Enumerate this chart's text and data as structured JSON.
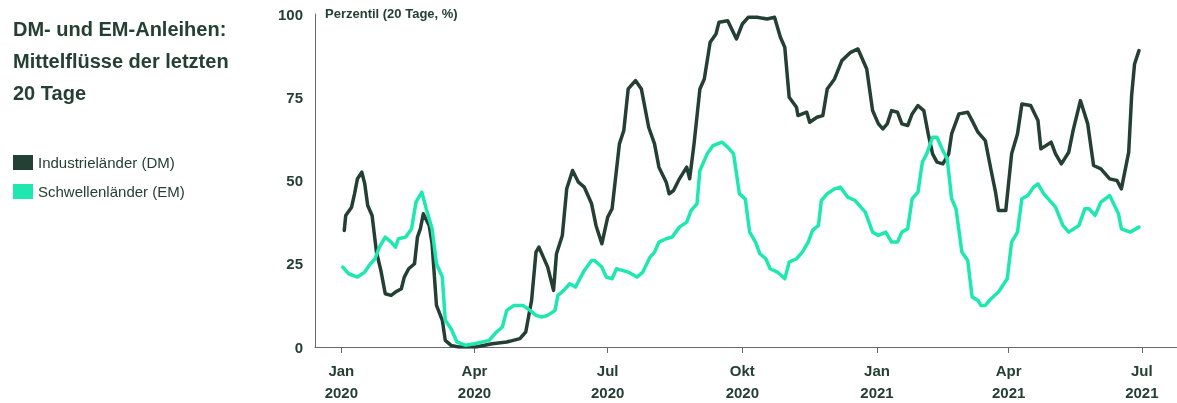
{
  "chart_data": {
    "type": "line",
    "title": "DM- und EM-Anleihen:\nMittelflüsse der letzten\n20 Tage",
    "ylabel": "Perzentil (20 Tage, %)",
    "xlim": [
      "2019-12-14",
      "2021-07-25"
    ],
    "xticks": [
      {
        "value": "2020-01-01",
        "label": "Jan\n2020"
      },
      {
        "value": "2020-04-01",
        "label": "Apr\n2020"
      },
      {
        "value": "2020-07-01",
        "label": "Jul\n2020"
      },
      {
        "value": "2020-10-01",
        "label": "Okt\n2020"
      },
      {
        "value": "2021-01-01",
        "label": "Jan\n2021"
      },
      {
        "value": "2021-04-01",
        "label": "Apr\n2021"
      },
      {
        "value": "2021-07-01",
        "label": "Jul\n2021"
      }
    ],
    "ylim": [
      0,
      100
    ],
    "yticks": [
      0,
      25,
      50,
      75,
      100
    ],
    "grid": false,
    "legend": "left",
    "marker": "none",
    "line_style": "solid",
    "series": [
      {
        "name": "Industrieländer (DM)",
        "color": "#243f34",
        "x": [
          "2020-01-03",
          "2020-01-04",
          "2020-01-08",
          "2020-01-10",
          "2020-01-12",
          "2020-01-15",
          "2020-01-17",
          "2020-01-19",
          "2020-01-22",
          "2020-01-25",
          "2020-01-28",
          "2020-01-31",
          "2020-02-04",
          "2020-02-07",
          "2020-02-11",
          "2020-02-13",
          "2020-02-16",
          "2020-02-20",
          "2020-02-22",
          "2020-02-24",
          "2020-02-26",
          "2020-03-01",
          "2020-03-03",
          "2020-03-06",
          "2020-03-10",
          "2020-03-12",
          "2020-03-16",
          "2020-03-21",
          "2020-04-02",
          "2020-04-13",
          "2020-04-23",
          "2020-05-02",
          "2020-05-06",
          "2020-05-10",
          "2020-05-13",
          "2020-05-15",
          "2020-05-18",
          "2020-05-21",
          "2020-05-25",
          "2020-05-27",
          "2020-05-31",
          "2020-06-03",
          "2020-06-07",
          "2020-06-11",
          "2020-06-15",
          "2020-06-17",
          "2020-06-20",
          "2020-06-23",
          "2020-06-27",
          "2020-07-01",
          "2020-07-04",
          "2020-07-09",
          "2020-07-12",
          "2020-07-15",
          "2020-07-20",
          "2020-07-24",
          "2020-07-29",
          "2020-08-02",
          "2020-08-05",
          "2020-08-10",
          "2020-08-12",
          "2020-08-15",
          "2020-08-19",
          "2020-08-24",
          "2020-08-26",
          "2020-08-29",
          "2020-09-02",
          "2020-09-05",
          "2020-09-09",
          "2020-09-13",
          "2020-09-15",
          "2020-09-21",
          "2020-09-27",
          "2020-10-01",
          "2020-10-05",
          "2020-10-11",
          "2020-10-18",
          "2020-10-23",
          "2020-10-27",
          "2020-10-30",
          "2020-11-02",
          "2020-11-07",
          "2020-11-08",
          "2020-11-14",
          "2020-11-16",
          "2020-11-21",
          "2020-11-25",
          "2020-11-28",
          "2020-12-03",
          "2020-12-08",
          "2020-12-14",
          "2020-12-19",
          "2020-12-25",
          "2020-12-29",
          "2021-01-02",
          "2021-01-05",
          "2021-01-08",
          "2021-01-11",
          "2021-01-15",
          "2021-01-18",
          "2021-01-22",
          "2021-01-25",
          "2021-01-29",
          "2021-02-02",
          "2021-02-05",
          "2021-02-08",
          "2021-02-11",
          "2021-02-15",
          "2021-02-19",
          "2021-02-21",
          "2021-02-26",
          "2021-03-04",
          "2021-03-07",
          "2021-03-11",
          "2021-03-16",
          "2021-03-20",
          "2021-03-23",
          "2021-03-25",
          "2021-03-30",
          "2021-04-03",
          "2021-04-07",
          "2021-04-10",
          "2021-04-16",
          "2021-04-21",
          "2021-04-23",
          "2021-04-30",
          "2021-05-03",
          "2021-05-07",
          "2021-05-12",
          "2021-05-15",
          "2021-05-20",
          "2021-05-25",
          "2021-05-29",
          "2021-06-03",
          "2021-06-09",
          "2021-06-14",
          "2021-06-17",
          "2021-06-22",
          "2021-06-24",
          "2021-06-26",
          "2021-06-29"
        ],
        "values": [
          35,
          39.5,
          42,
          46,
          50.5,
          52.5,
          49,
          42.5,
          39.5,
          28.5,
          23,
          16,
          15.5,
          16.5,
          17.5,
          21,
          23.5,
          25,
          33,
          35.5,
          40,
          36.5,
          31,
          12.5,
          8,
          2,
          0.5,
          0,
          0,
          1,
          1.5,
          2.5,
          4.5,
          14,
          28.5,
          30,
          27,
          24,
          17,
          28,
          33.5,
          47.5,
          53,
          49.5,
          48,
          46,
          43,
          36.5,
          31,
          39,
          41.5,
          61,
          65,
          77.5,
          80,
          77.5,
          66,
          61,
          54,
          49.5,
          46,
          47,
          50.5,
          54,
          50.5,
          61,
          77.5,
          80.5,
          91.5,
          94,
          97.5,
          98,
          92.5,
          97,
          99,
          99,
          98.5,
          99,
          93,
          90,
          75,
          72,
          69.5,
          70.5,
          67.5,
          69,
          69.5,
          77.5,
          80.5,
          86,
          88.5,
          89.5,
          83.5,
          71,
          67,
          65.5,
          67,
          71,
          70.5,
          67,
          66.5,
          70,
          72.5,
          71,
          64,
          58,
          55.5,
          55,
          58,
          64,
          70,
          70.5,
          68,
          64.5,
          62,
          53,
          46.5,
          41,
          41,
          58,
          64,
          73,
          72.5,
          68,
          59.5,
          61.5,
          58,
          55,
          58.5,
          65,
          74,
          67,
          54.5,
          53.5,
          50.5,
          50,
          47.5,
          58.5,
          75.5,
          85,
          89
        ]
      },
      {
        "name": "Schwellenländer (EM)",
        "color": "#1ee8b0",
        "x": [
          "2020-01-02",
          "2020-01-06",
          "2020-01-12",
          "2020-01-17",
          "2020-01-20",
          "2020-01-24",
          "2020-01-27",
          "2020-01-31",
          "2020-02-04",
          "2020-02-07",
          "2020-02-09",
          "2020-02-14",
          "2020-02-18",
          "2020-02-21",
          "2020-02-25",
          "2020-02-28",
          "2020-03-03",
          "2020-03-06",
          "2020-03-10",
          "2020-03-12",
          "2020-03-16",
          "2020-03-20",
          "2020-03-26",
          "2020-04-01",
          "2020-04-11",
          "2020-04-16",
          "2020-04-20",
          "2020-04-23",
          "2020-04-28",
          "2020-05-04",
          "2020-05-09",
          "2020-05-13",
          "2020-05-17",
          "2020-05-21",
          "2020-05-26",
          "2020-05-28",
          "2020-06-01",
          "2020-06-05",
          "2020-06-09",
          "2020-06-12",
          "2020-06-15",
          "2020-06-20",
          "2020-06-22",
          "2020-06-27",
          "2020-06-30",
          "2020-07-04",
          "2020-07-07",
          "2020-07-11",
          "2020-07-15",
          "2020-07-21",
          "2020-07-25",
          "2020-07-30",
          "2020-08-02",
          "2020-08-05",
          "2020-08-10",
          "2020-08-14",
          "2020-08-19",
          "2020-08-24",
          "2020-08-27",
          "2020-08-31",
          "2020-09-02",
          "2020-09-07",
          "2020-09-11",
          "2020-09-17",
          "2020-09-21",
          "2020-09-25",
          "2020-09-29",
          "2020-10-03",
          "2020-10-06",
          "2020-10-10",
          "2020-10-13",
          "2020-10-17",
          "2020-10-20",
          "2020-10-25",
          "2020-10-30",
          "2020-11-02",
          "2020-11-07",
          "2020-11-11",
          "2020-11-15",
          "2020-11-18",
          "2020-11-22",
          "2020-11-24",
          "2020-11-28",
          "2020-12-03",
          "2020-12-07",
          "2020-12-12",
          "2020-12-17",
          "2020-12-21",
          "2020-12-24",
          "2020-12-29",
          "2021-01-02",
          "2021-01-07",
          "2021-01-11",
          "2021-01-15",
          "2021-01-18",
          "2021-01-22",
          "2021-01-25",
          "2021-01-29",
          "2021-02-01",
          "2021-02-04",
          "2021-02-08",
          "2021-02-11",
          "2021-02-15",
          "2021-02-18",
          "2021-02-21",
          "2021-02-24",
          "2021-02-28",
          "2021-03-04",
          "2021-03-07",
          "2021-03-11",
          "2021-03-13",
          "2021-03-16",
          "2021-03-20",
          "2021-03-25",
          "2021-03-31",
          "2021-04-03",
          "2021-04-07",
          "2021-04-10",
          "2021-04-14",
          "2021-04-18",
          "2021-04-21",
          "2021-04-25",
          "2021-04-30",
          "2021-05-03",
          "2021-05-08",
          "2021-05-12",
          "2021-05-19",
          "2021-05-23",
          "2021-05-26",
          "2021-05-30",
          "2021-06-03",
          "2021-06-09",
          "2021-06-15",
          "2021-06-17",
          "2021-06-23",
          "2021-06-29"
        ],
        "values": [
          24,
          22,
          21,
          22.5,
          24.5,
          26.5,
          30,
          33,
          31.5,
          30,
          32.5,
          33,
          35.5,
          43.5,
          46.5,
          41.5,
          35.5,
          25,
          21,
          8,
          5.5,
          1.5,
          0.5,
          1,
          2,
          4.5,
          6,
          11,
          12.5,
          12.5,
          11,
          9.5,
          9,
          9.5,
          11,
          15.5,
          17,
          19,
          18,
          20.5,
          23,
          26,
          26,
          24,
          21,
          20.5,
          23.5,
          23,
          22.5,
          21,
          22.5,
          27,
          28.5,
          31.5,
          32.5,
          33,
          36,
          37.5,
          41,
          43,
          53,
          58,
          60.5,
          61.5,
          60,
          58,
          46,
          44.5,
          34.5,
          31.5,
          28,
          26.5,
          23.5,
          22.5,
          20.5,
          25.5,
          26.5,
          28.5,
          31.5,
          35,
          36.5,
          44,
          46,
          47.5,
          48,
          45,
          44,
          42,
          40.5,
          34.5,
          33.5,
          34.5,
          31.5,
          31.5,
          34.5,
          35.5,
          44.5,
          46.5,
          55.5,
          58,
          63,
          63,
          59,
          56.5,
          44.5,
          41.5,
          28.5,
          26,
          15,
          14,
          12.5,
          12.5,
          14.5,
          16.5,
          20.5,
          31.5,
          34.5,
          44.5,
          45.5,
          48,
          49,
          46,
          43.5,
          42,
          36.5,
          34.5,
          36.5,
          41.5,
          41.5,
          39.5,
          43.5,
          45.5,
          40,
          35.5,
          34.5,
          36
        ]
      }
    ]
  }
}
